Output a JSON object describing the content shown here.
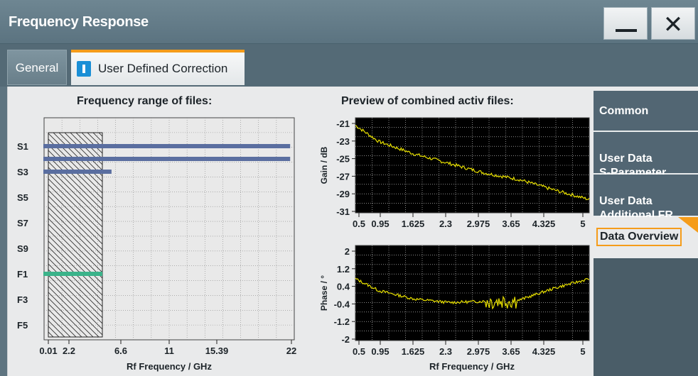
{
  "window": {
    "title": "Frequency Response",
    "minimize_icon": "minimize-icon",
    "close_icon": "close-icon"
  },
  "tabs": [
    {
      "label": "General",
      "active": false
    },
    {
      "label": "User Defined Correction",
      "active": true,
      "toggle_state": "on"
    }
  ],
  "left_panel": {
    "title": "Frequency range of files:",
    "y_labels": [
      "S1",
      "S3",
      "S5",
      "S7",
      "S9",
      "F1",
      "F3",
      "F5"
    ],
    "x_ticks": [
      "0.01",
      "2.2",
      "6.6",
      "11",
      "15.39",
      "22"
    ],
    "x_label": "Rf Frequency / GHz"
  },
  "right_panel": {
    "title": "Preview of combined activ files:",
    "gain_y_label": "Gain / dB",
    "gain_y_ticks": [
      "-21",
      "-23",
      "-25",
      "-27",
      "-29",
      "-31"
    ],
    "phase_y_label": "Phase / °",
    "phase_y_ticks": [
      "2",
      "1.2",
      "0.4",
      "-0.4",
      "-1.2",
      "-2"
    ],
    "x_ticks": [
      "0.5",
      "0.95",
      "1.625",
      "2.3",
      "2.975",
      "3.65",
      "4.325",
      "5"
    ],
    "x_label": "Rf Frequency / GHz"
  },
  "sidebar": [
    {
      "label": "Common"
    },
    {
      "label": "User Data\nS-Parameter"
    },
    {
      "label": "User Data\nAdditional FR"
    },
    {
      "label": "Data Overview",
      "active": true
    }
  ],
  "colors": {
    "accent": "#f59c1a",
    "trace": "#e8e000",
    "bar_blue": "#5a6ea0",
    "bar_green": "#3bb38a"
  },
  "chart_data": [
    {
      "type": "bar",
      "title": "Frequency range of files:",
      "xlabel": "Rf Frequency / GHz",
      "orientation": "horizontal",
      "xlim": [
        0.01,
        22
      ],
      "ranges": [
        {
          "row": "S1",
          "start": 0.01,
          "end": 21.7,
          "color": "#5a6ea0"
        },
        {
          "row": "S2",
          "start": 0.01,
          "end": 21.7,
          "color": "#5a6ea0"
        },
        {
          "row": "S3",
          "start": 0.01,
          "end": 6.0,
          "color": "#5a6ea0"
        },
        {
          "row": "F1",
          "start": 0.01,
          "end": 5.2,
          "color": "#3bb38a"
        }
      ],
      "highlight_range": [
        0.5,
        5.2
      ]
    },
    {
      "type": "line",
      "title": "Preview of combined activ files:",
      "xlabel": "Rf Frequency / GHz",
      "ylabel": "Gain / dB",
      "xlim": [
        0.5,
        5
      ],
      "ylim": [
        -31,
        -21
      ],
      "x": [
        0.5,
        0.95,
        1.625,
        2.3,
        2.975,
        3.65,
        4.325,
        5
      ],
      "values": [
        -21.8,
        -23.5,
        -24.8,
        -25.8,
        -26.8,
        -27.5,
        -28.6,
        -29.6
      ]
    },
    {
      "type": "line",
      "xlabel": "Rf Frequency / GHz",
      "ylabel": "Phase / °",
      "xlim": [
        0.5,
        5
      ],
      "ylim": [
        -2,
        2
      ],
      "x": [
        0.5,
        0.95,
        1.625,
        2.3,
        2.975,
        3.65,
        4.325,
        5
      ],
      "values": [
        0.6,
        0.1,
        -0.25,
        -0.4,
        -0.35,
        -0.3,
        0.2,
        0.6
      ]
    }
  ]
}
